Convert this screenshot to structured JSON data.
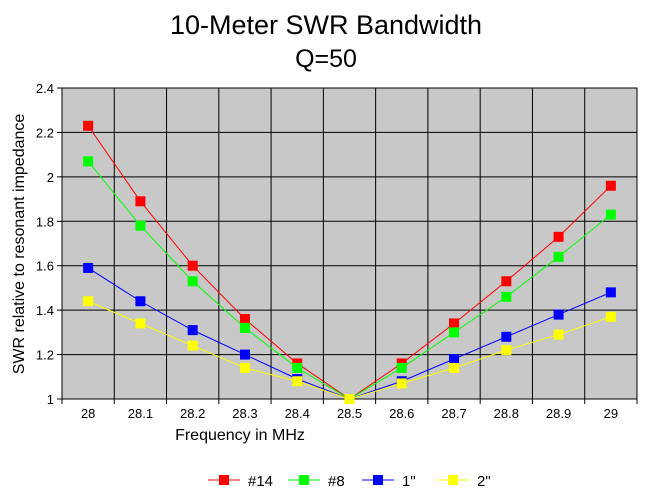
{
  "chart_data": {
    "type": "line",
    "title": "10-Meter SWR Bandwidth",
    "subtitle": "Q=50",
    "xlabel": "Frequency in MHz",
    "ylabel": "SWR relative to resonant impedance",
    "categories": [
      "28",
      "28.1",
      "28.2",
      "28.3",
      "28.4",
      "28.5",
      "28.6",
      "28.7",
      "28.8",
      "28.9",
      "29"
    ],
    "ylim": [
      1,
      2.4
    ],
    "yticks": [
      "1",
      "1.2",
      "1.4",
      "1.6",
      "1.8",
      "2",
      "2.2",
      "2.4"
    ],
    "grid": true,
    "legend_position": "bottom",
    "series": [
      {
        "name": "#14",
        "color": "#ff0000",
        "values": [
          2.23,
          1.89,
          1.6,
          1.36,
          1.16,
          1.0,
          1.16,
          1.34,
          1.53,
          1.73,
          1.96
        ]
      },
      {
        "name": "#8",
        "color": "#00ff00",
        "values": [
          2.07,
          1.78,
          1.53,
          1.32,
          1.14,
          1.0,
          1.14,
          1.3,
          1.46,
          1.64,
          1.83
        ]
      },
      {
        "name": "1\"",
        "color": "#0000ff",
        "values": [
          1.59,
          1.44,
          1.31,
          1.2,
          1.09,
          1.0,
          1.08,
          1.18,
          1.28,
          1.38,
          1.48
        ]
      },
      {
        "name": "2\"",
        "color": "#ffff00",
        "values": [
          1.44,
          1.34,
          1.24,
          1.14,
          1.08,
          1.0,
          1.07,
          1.14,
          1.22,
          1.29,
          1.37
        ]
      }
    ]
  }
}
